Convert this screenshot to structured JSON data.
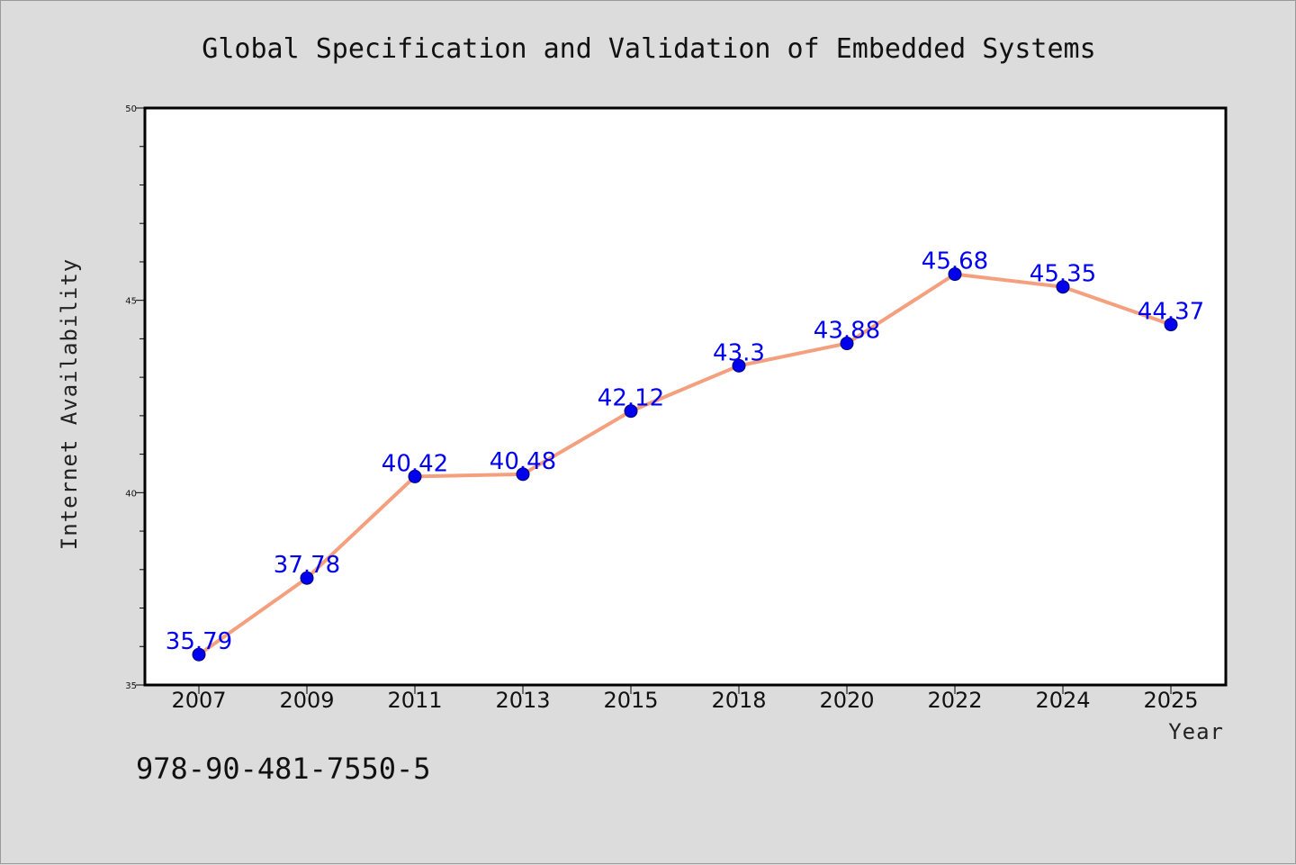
{
  "chart_data": {
    "type": "line",
    "title": "Global Specification and Validation of Embedded Systems",
    "xlabel": "Year",
    "ylabel": "Internet Availability",
    "categories": [
      "2007",
      "2009",
      "2011",
      "2013",
      "2015",
      "2018",
      "2020",
      "2022",
      "2024",
      "2025"
    ],
    "series": [
      {
        "values": [
          35.79,
          37.78,
          40.42,
          40.48,
          42.12,
          43.3,
          43.88,
          45.68,
          45.35,
          44.37
        ],
        "line_color": "#f4a07f",
        "marker_color": "#0000ee"
      }
    ],
    "ylim": [
      35,
      50
    ],
    "yticks": [
      "35",
      "40",
      "45",
      "50"
    ],
    "grid": false,
    "legend": "none"
  },
  "footer": {
    "isbn": "978-90-481-7550-5"
  }
}
